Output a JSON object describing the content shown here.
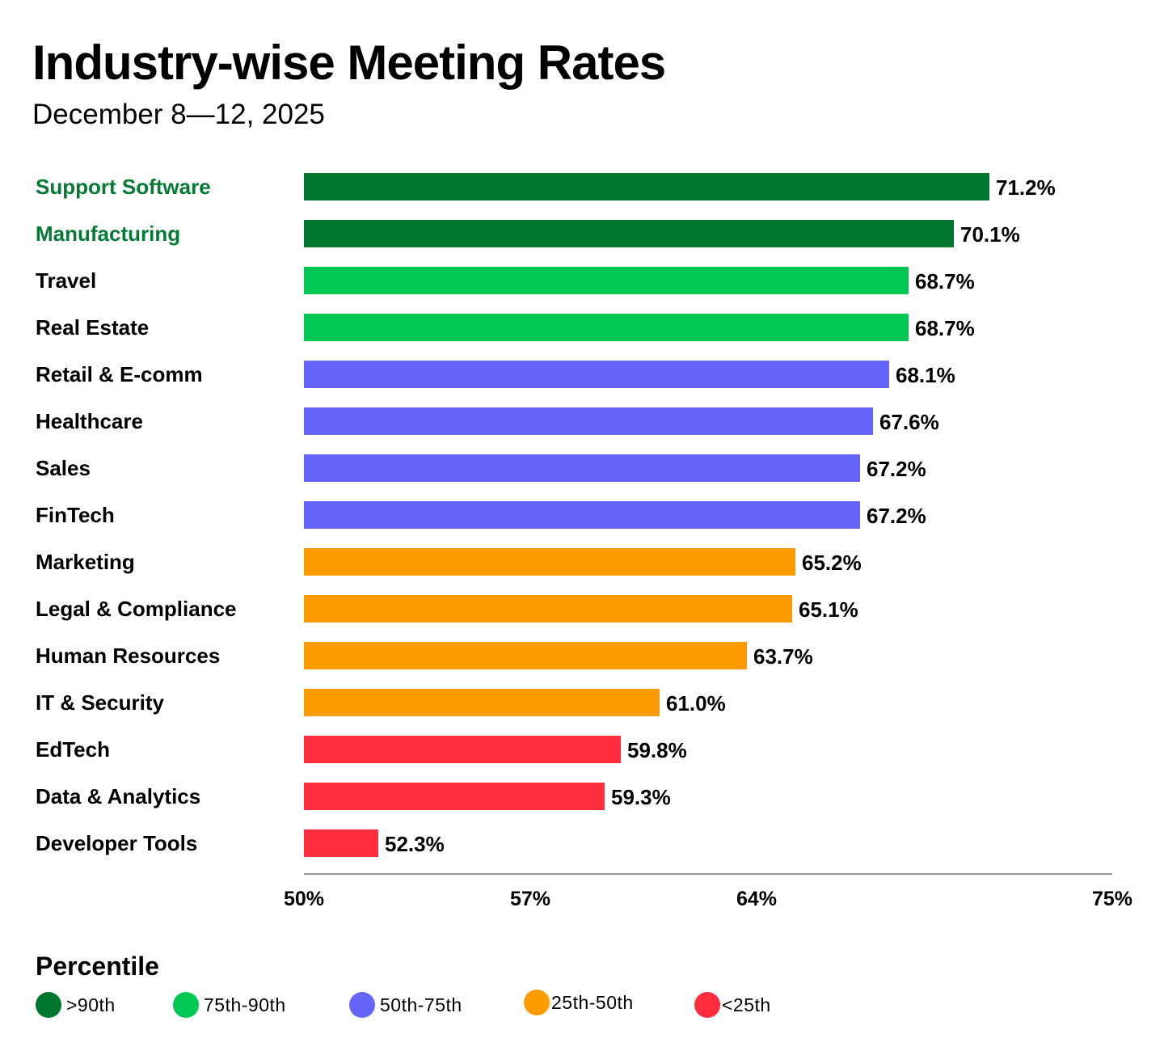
{
  "chart_data": {
    "type": "bar",
    "orientation": "horizontal",
    "title": "Industry-wise Meeting Rates",
    "subtitle": "December 8—12, 2025",
    "xlim": [
      50,
      75
    ],
    "ticks": [
      {
        "value": 50,
        "label": "50%"
      },
      {
        "value": 57,
        "label": "57%"
      },
      {
        "value": 64,
        "label": "64%"
      },
      {
        "value": 75,
        "label": "75%"
      }
    ],
    "categories": [
      "Support Software",
      "Manufacturing",
      "Travel",
      "Real Estate",
      "Retail & E-comm",
      "Healthcare",
      "Sales",
      "FinTech",
      "Marketing",
      "Legal & Compliance",
      "Human Resources",
      "IT & Security",
      "EdTech",
      "Data & Analytics",
      "Developer Tools"
    ],
    "values": [
      71.2,
      70.1,
      68.7,
      68.7,
      68.1,
      67.6,
      67.2,
      67.2,
      65.2,
      65.1,
      63.7,
      61.0,
      59.8,
      59.3,
      52.3
    ],
    "value_labels": [
      "71.2%",
      "70.1%",
      "68.7%",
      "68.7%",
      "68.1%",
      "67.6%",
      "67.2%",
      "67.2%",
      "65.2%",
      "65.1%",
      "63.7%",
      "61.0%",
      "59.8%",
      "59.3%",
      "52.3%"
    ],
    "percentile_group": [
      0,
      0,
      1,
      1,
      2,
      2,
      2,
      2,
      3,
      3,
      3,
      3,
      4,
      4,
      4
    ],
    "highlight_label_color": "#047a34",
    "highlighted_categories": [
      "Support Software",
      "Manufacturing"
    ],
    "legend": {
      "title": "Percentile",
      "items": [
        {
          "label": ">90th",
          "color": "#00772f"
        },
        {
          "label": "75th-90th",
          "color": "#00c853"
        },
        {
          "label": "50th-75th",
          "color": "#6565fb"
        },
        {
          "label": "25th-50th",
          "color": "#fd9c00"
        },
        {
          "label": "<25th",
          "color": "#ff2d3e"
        }
      ]
    }
  }
}
